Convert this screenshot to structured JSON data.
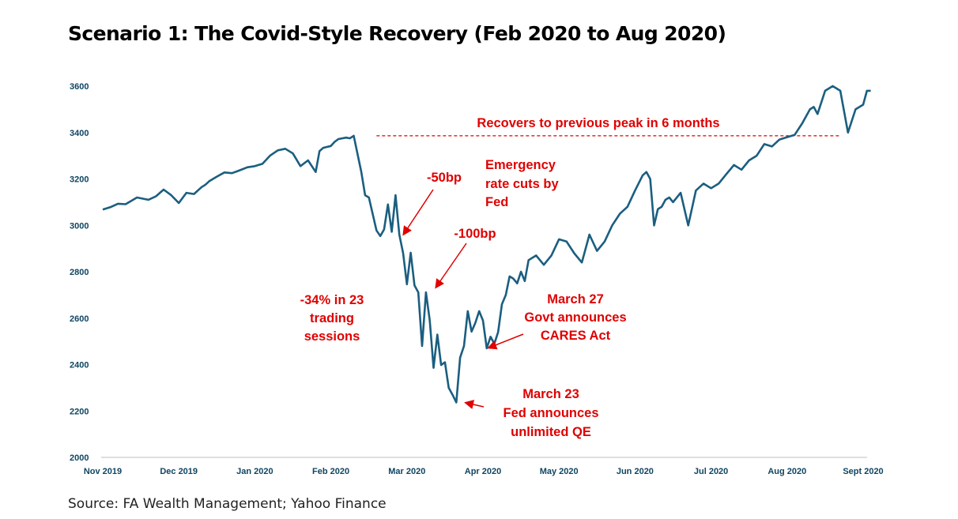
{
  "title": "Scenario 1: The Covid-Style Recovery (Feb 2020 to Aug 2020)",
  "source": "Source: FA Wealth Management; Yahoo Finance",
  "colors": {
    "line": "#1b5e80",
    "annotation": "#e00000",
    "axis_text": "#0f4561"
  },
  "annotations": {
    "peak_note": "Recovers to previous peak in 6 months",
    "cut50": "-50bp",
    "emergency": [
      "Emergency",
      "rate cuts by",
      "Fed"
    ],
    "cut100": "-100bp",
    "drawdown": [
      "-34% in 23",
      "trading",
      "sessions"
    ],
    "march27": [
      "March 27",
      "Govt announces",
      "CARES Act"
    ],
    "march23": [
      "March 23",
      "Fed announces",
      "unlimited QE"
    ]
  },
  "chart_data": {
    "type": "line",
    "title": "Scenario 1: The Covid-Style Recovery (Feb 2020 to Aug 2020)",
    "xlabel": "",
    "ylabel": "",
    "ylim": [
      2000,
      3600
    ],
    "yticks": [
      "2000",
      "2200",
      "2400",
      "2600",
      "2800",
      "3000",
      "3200",
      "3400",
      "3600"
    ],
    "xticks": [
      "Nov 2019",
      "Dec 2019",
      "Jan 2020",
      "Feb 2020",
      "Mar 2020",
      "Apr 2020",
      "May 2020",
      "Jun 2020",
      "Jul 2020",
      "Aug 2020",
      "Sept 2020"
    ],
    "grid": false,
    "reference_line": {
      "y": 3386,
      "style": "dashed",
      "from_month": 3.6,
      "to_month": 9.7
    },
    "series": [
      {
        "x": [
          0,
          0.1,
          0.2,
          0.3,
          0.45,
          0.6,
          0.7,
          0.8,
          0.9,
          1.0,
          1.1,
          1.2,
          1.3,
          1.35,
          1.4,
          1.5,
          1.6,
          1.7,
          1.8,
          1.9,
          2.0,
          2.1,
          2.2,
          2.3,
          2.4,
          2.5,
          2.6,
          2.7,
          2.8,
          2.85,
          2.9,
          3.0,
          3.05,
          3.1,
          3.15,
          3.2,
          3.25,
          3.3,
          3.4,
          3.45,
          3.5,
          3.6,
          3.65,
          3.7,
          3.75,
          3.8,
          3.85,
          3.9,
          3.95,
          4.0,
          4.05,
          4.1,
          4.15,
          4.2,
          4.25,
          4.3,
          4.35,
          4.4,
          4.45,
          4.5,
          4.55,
          4.6,
          4.65,
          4.7,
          4.75,
          4.8,
          4.85,
          4.9,
          4.95,
          5.0,
          5.05,
          5.1,
          5.15,
          5.2,
          5.25,
          5.3,
          5.35,
          5.4,
          5.45,
          5.5,
          5.55,
          5.6,
          5.7,
          5.8,
          5.9,
          6.0,
          6.1,
          6.2,
          6.3,
          6.4,
          6.5,
          6.6,
          6.7,
          6.8,
          6.9,
          7.0,
          7.1,
          7.15,
          7.2,
          7.25,
          7.3,
          7.35,
          7.4,
          7.45,
          7.5,
          7.6,
          7.7,
          7.8,
          7.9,
          8.0,
          8.1,
          8.2,
          8.3,
          8.4,
          8.5,
          8.6,
          8.7,
          8.8,
          8.9,
          9.0,
          9.1,
          9.2,
          9.3,
          9.35,
          9.4,
          9.5,
          9.6,
          9.7,
          9.8,
          9.9,
          10.0,
          10.05,
          10.1
        ],
        "values": [
          3068,
          3078,
          3093,
          3091,
          3120,
          3110,
          3125,
          3154,
          3130,
          3096,
          3140,
          3135,
          3165,
          3175,
          3190,
          3210,
          3228,
          3225,
          3237,
          3250,
          3255,
          3265,
          3300,
          3323,
          3330,
          3310,
          3255,
          3280,
          3230,
          3320,
          3334,
          3342,
          3360,
          3372,
          3375,
          3378,
          3375,
          3386,
          3230,
          3130,
          3120,
          2978,
          2954,
          2982,
          3090,
          2972,
          3130,
          2960,
          2880,
          2746,
          2882,
          2741,
          2711,
          2480,
          2711,
          2590,
          2386,
          2529,
          2398,
          2410,
          2300,
          2270,
          2237,
          2430,
          2480,
          2630,
          2542,
          2580,
          2630,
          2590,
          2470,
          2520,
          2490,
          2540,
          2660,
          2700,
          2780,
          2770,
          2750,
          2800,
          2760,
          2850,
          2870,
          2830,
          2870,
          2940,
          2930,
          2880,
          2840,
          2960,
          2890,
          2930,
          3000,
          3050,
          3080,
          3150,
          3215,
          3230,
          3200,
          3000,
          3070,
          3080,
          3110,
          3120,
          3100,
          3140,
          3000,
          3150,
          3180,
          3160,
          3180,
          3220,
          3260,
          3240,
          3280,
          3300,
          3350,
          3340,
          3370,
          3380,
          3390,
          3440,
          3500,
          3510,
          3480,
          3580,
          3600,
          3580,
          3400,
          3500,
          3520,
          3580,
          3580
        ]
      }
    ]
  }
}
